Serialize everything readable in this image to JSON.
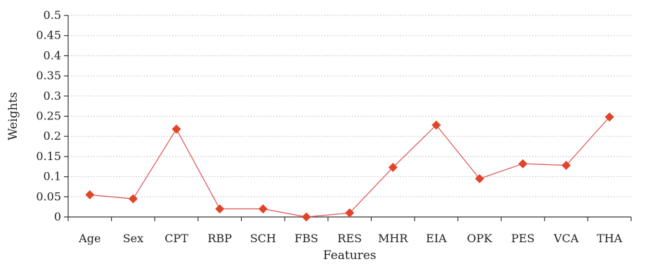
{
  "chart_data": {
    "type": "line",
    "xlabel": "Features",
    "ylabel": "Weights",
    "categories": [
      "Age",
      "Sex",
      "CPT",
      "RBP",
      "SCH",
      "FBS",
      "RES",
      "MHR",
      "EIA",
      "OPK",
      "PES",
      "VCA",
      "THA"
    ],
    "series": [
      {
        "values": [
          0.055,
          0.045,
          0.218,
          0.02,
          0.02,
          0.0,
          0.01,
          0.123,
          0.228,
          0.095,
          0.132,
          0.128,
          0.248
        ],
        "color": "#e0452a",
        "line_color": "#d9534f",
        "marker": "diamond"
      }
    ],
    "ylim": [
      0,
      0.5
    ],
    "yticks": [
      "0",
      "0.05",
      "0.1",
      "0.15",
      "0.2",
      "0.25",
      "0.3",
      "0.35",
      "0.4",
      "0.45",
      "0.5"
    ],
    "grid": true,
    "legend": "none"
  }
}
